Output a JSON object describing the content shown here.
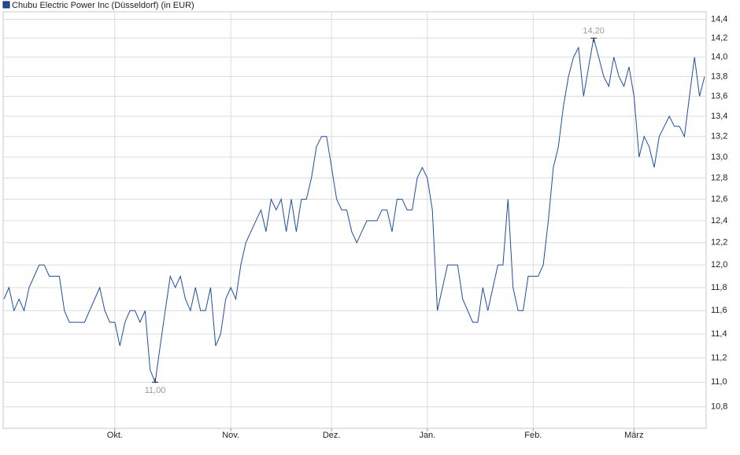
{
  "chart_data": {
    "type": "line",
    "series": [
      {
        "name": "Chubu Electric Power Inc (Düsseldorf) (in EUR)",
        "color": "#1f4e9c",
        "values": [
          11.7,
          11.8,
          11.6,
          11.7,
          11.6,
          11.8,
          11.9,
          12.0,
          12.0,
          11.9,
          11.9,
          11.9,
          11.6,
          11.5,
          11.5,
          11.5,
          11.5,
          11.6,
          11.7,
          11.8,
          11.6,
          11.5,
          11.5,
          11.3,
          11.5,
          11.6,
          11.6,
          11.5,
          11.6,
          11.1,
          11.0,
          11.3,
          11.6,
          11.9,
          11.8,
          11.9,
          11.7,
          11.6,
          11.8,
          11.6,
          11.6,
          11.8,
          11.3,
          11.4,
          11.7,
          11.8,
          11.7,
          12.0,
          12.2,
          12.3,
          12.4,
          12.5,
          12.3,
          12.6,
          12.5,
          12.6,
          12.3,
          12.6,
          12.3,
          12.6,
          12.6,
          12.8,
          13.1,
          13.2,
          13.2,
          12.9,
          12.6,
          12.5,
          12.5,
          12.3,
          12.2,
          12.3,
          12.4,
          12.4,
          12.4,
          12.5,
          12.5,
          12.3,
          12.6,
          12.6,
          12.5,
          12.5,
          12.8,
          12.9,
          12.8,
          12.5,
          11.6,
          11.8,
          12.0,
          12.0,
          12.0,
          11.7,
          11.6,
          11.5,
          11.5,
          11.8,
          11.6,
          11.8,
          12.0,
          12.0,
          12.6,
          11.8,
          11.6,
          11.6,
          11.9,
          11.9,
          11.9,
          12.0,
          12.4,
          12.9,
          13.1,
          13.5,
          13.8,
          14.0,
          14.1,
          13.6,
          13.9,
          14.2,
          14.0,
          13.8,
          13.7,
          14.0,
          13.8,
          13.7,
          13.9,
          13.6,
          13.0,
          13.2,
          13.1,
          12.9,
          13.2,
          13.3,
          13.4,
          13.3,
          13.3,
          13.2,
          13.6,
          14.0,
          13.6,
          13.8
        ]
      }
    ],
    "categories": [
      null,
      null,
      null,
      null,
      null,
      null,
      null,
      null,
      null,
      null,
      null,
      null,
      null,
      null,
      null,
      null,
      null,
      null,
      null,
      null,
      null,
      null,
      "Okt.",
      null,
      null,
      null,
      null,
      null,
      null,
      null,
      null,
      null,
      null,
      null,
      null,
      null,
      null,
      null,
      null,
      null,
      null,
      null,
      null,
      null,
      null,
      "Nov.",
      null,
      null,
      null,
      null,
      null,
      null,
      null,
      null,
      null,
      null,
      null,
      null,
      null,
      null,
      null,
      null,
      null,
      null,
      null,
      "Dez.",
      null,
      null,
      null,
      null,
      null,
      null,
      null,
      null,
      null,
      null,
      null,
      null,
      null,
      null,
      null,
      null,
      null,
      null,
      "Jan.",
      null,
      null,
      null,
      null,
      null,
      null,
      null,
      null,
      null,
      null,
      null,
      null,
      null,
      null,
      null,
      null,
      null,
      null,
      null,
      null,
      "Feb.",
      null,
      null,
      null,
      null,
      null,
      null,
      null,
      null,
      null,
      null,
      null,
      null,
      null,
      null,
      null,
      null,
      null,
      null,
      null,
      "März",
      null,
      null,
      null,
      null,
      null,
      null,
      null,
      null,
      null,
      null,
      null,
      null,
      null,
      null
    ],
    "ylim": [
      10.63,
      14.48
    ],
    "log": true,
    "grid": true,
    "yticks": [
      {
        "value": 10.8,
        "label": "10,8"
      },
      {
        "value": 11.0,
        "label": "11,0"
      },
      {
        "value": 11.2,
        "label": "11,2"
      },
      {
        "value": 11.4,
        "label": "11,4"
      },
      {
        "value": 11.6,
        "label": "11,6"
      },
      {
        "value": 11.8,
        "label": "11,8"
      },
      {
        "value": 12.0,
        "label": "12,0"
      },
      {
        "value": 12.2,
        "label": "12,2"
      },
      {
        "value": 12.4,
        "label": "12,4"
      },
      {
        "value": 12.6,
        "label": "12,6"
      },
      {
        "value": 12.8,
        "label": "12,8"
      },
      {
        "value": 13.0,
        "label": "13,0"
      },
      {
        "value": 13.2,
        "label": "13,2"
      },
      {
        "value": 13.4,
        "label": "13,4"
      },
      {
        "value": 13.6,
        "label": "13,6"
      },
      {
        "value": 13.8,
        "label": "13,8"
      },
      {
        "value": 14.0,
        "label": "14,0"
      },
      {
        "value": 14.2,
        "label": "14,2"
      },
      {
        "value": 14.4,
        "label": "14,4"
      }
    ],
    "annotations": [
      {
        "text": "14,20",
        "value": 14.2
      },
      {
        "text": "11,00",
        "value": 11.0
      }
    ]
  }
}
